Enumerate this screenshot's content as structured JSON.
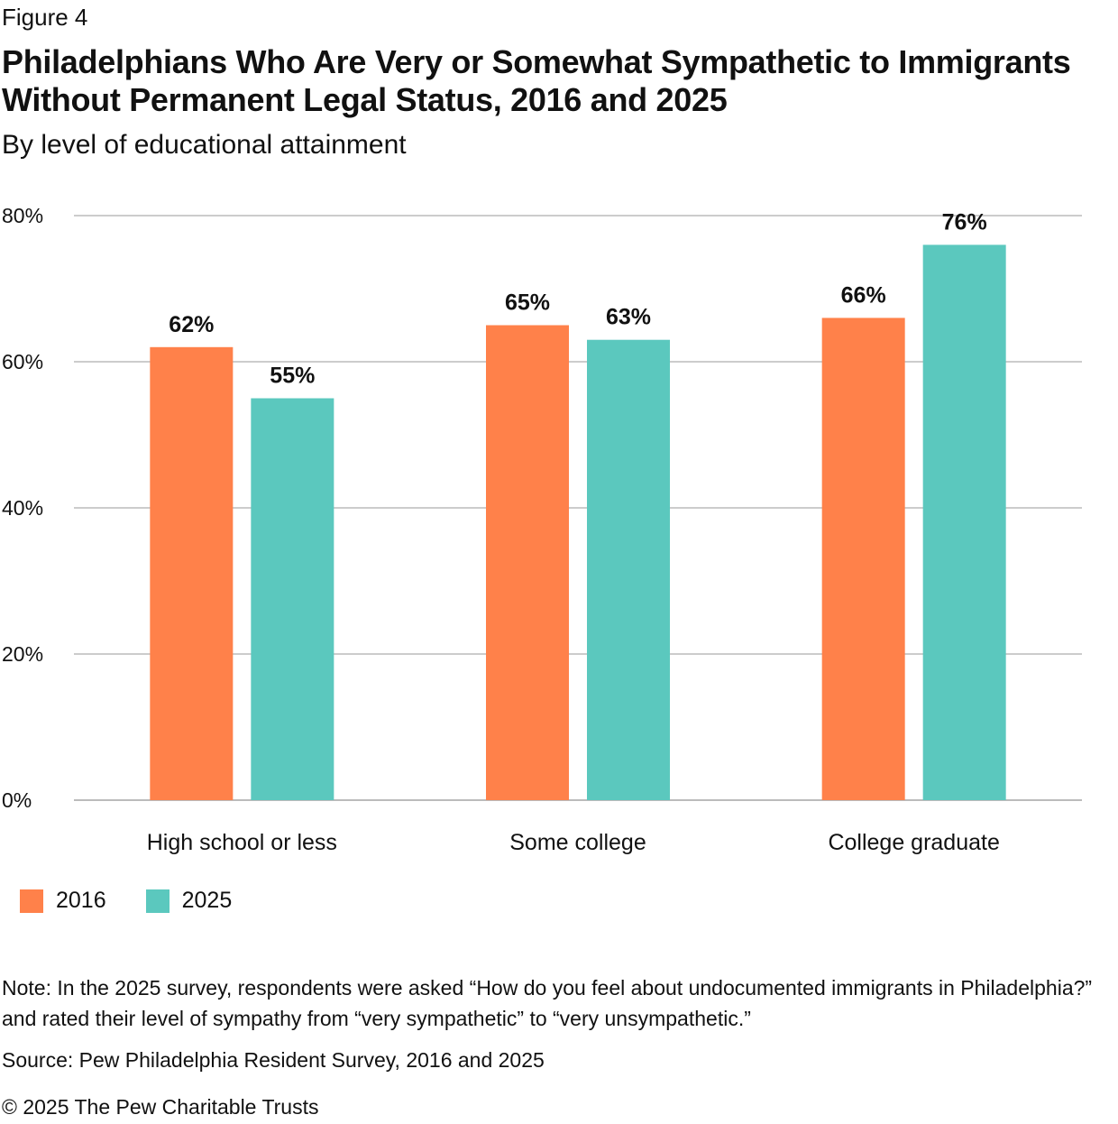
{
  "figure_label": "Figure 4",
  "notes": {
    "note": "Note: In the 2025 survey, respondents were asked “How do you feel about undocumented immigrants in Philadelphia?” and rated their level of sympathy from “very sympathetic” to “very unsympathetic.”",
    "source": "Source: Pew Philadelphia Resident Survey, 2016 and 2025",
    "copyright": "© 2025 The Pew Charitable Trusts"
  },
  "chart_data": {
    "type": "bar",
    "title": "Philadelphians Who Are Very or Somewhat Sympathetic to Immigrants Without Permanent Legal Status, 2016 and 2025",
    "subtitle": "By level of educational attainment",
    "xlabel": "",
    "ylabel": "",
    "categories": [
      "High school or less",
      "Some college",
      "College graduate"
    ],
    "series": [
      {
        "name": "2016",
        "color": "#FF814A",
        "values": [
          62,
          65,
          66
        ],
        "labels": [
          "62%",
          "65%",
          "66%"
        ]
      },
      {
        "name": "2025",
        "color": "#5BC8BE",
        "values": [
          55,
          63,
          76
        ],
        "labels": [
          "55%",
          "63%",
          "76%"
        ]
      }
    ],
    "ylim": [
      0,
      80
    ],
    "yticks": [
      0,
      20,
      40,
      60,
      80
    ],
    "ytick_labels": [
      "0%",
      "20%",
      "40%",
      "60%",
      "80%"
    ],
    "grid": true,
    "gridline_color": "#BBBBBB",
    "legend_position": "bottom-left"
  }
}
